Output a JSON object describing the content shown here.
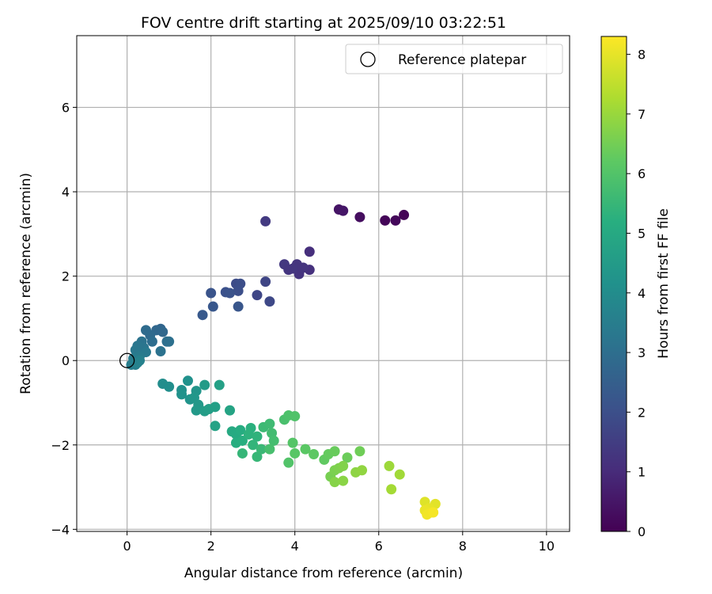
{
  "chart_data": {
    "type": "scatter",
    "title": "FOV centre drift starting at 2025/09/10 03:22:51",
    "xlabel": "Angular distance from reference (arcmin)",
    "ylabel": "Rotation from reference (arcmin)",
    "xlim": [
      -1.2,
      10.55
    ],
    "ylim": [
      -4.05,
      7.7
    ],
    "xticks": [
      0,
      2,
      4,
      6,
      8,
      10
    ],
    "yticks": [
      -4,
      -2,
      0,
      2,
      4,
      6
    ],
    "grid": true,
    "legend": {
      "position": "top-right",
      "entries": [
        "Reference platepar"
      ]
    },
    "reference_point": {
      "x": 0,
      "y": 0
    },
    "colorbar": {
      "label": "Hours from first FF file",
      "colormap": "viridis",
      "range": [
        0,
        8.3
      ],
      "ticks": [
        0,
        1,
        2,
        3,
        4,
        5,
        6,
        7,
        8
      ]
    },
    "series": [
      {
        "points": [
          {
            "x": 6.6,
            "y": 3.45,
            "c": 0.05
          },
          {
            "x": 6.15,
            "y": 3.32,
            "c": 0.1
          },
          {
            "x": 6.4,
            "y": 3.32,
            "c": 0.15
          },
          {
            "x": 5.55,
            "y": 3.4,
            "c": 0.3
          },
          {
            "x": 5.05,
            "y": 3.58,
            "c": 0.45
          },
          {
            "x": 5.15,
            "y": 3.55,
            "c": 0.5
          },
          {
            "x": 4.35,
            "y": 2.58,
            "c": 1.1
          },
          {
            "x": 4.35,
            "y": 2.15,
            "c": 1.15
          },
          {
            "x": 4.1,
            "y": 2.05,
            "c": 1.2
          },
          {
            "x": 4.05,
            "y": 2.28,
            "c": 1.25
          },
          {
            "x": 3.95,
            "y": 2.18,
            "c": 1.3
          },
          {
            "x": 3.75,
            "y": 2.28,
            "c": 1.35
          },
          {
            "x": 3.85,
            "y": 2.15,
            "c": 1.3
          },
          {
            "x": 4.2,
            "y": 2.2,
            "c": 1.25
          },
          {
            "x": 3.3,
            "y": 3.3,
            "c": 1.4
          },
          {
            "x": 3.3,
            "y": 1.87,
            "c": 1.7
          },
          {
            "x": 3.1,
            "y": 1.55,
            "c": 1.75
          },
          {
            "x": 3.4,
            "y": 1.4,
            "c": 1.8
          },
          {
            "x": 2.6,
            "y": 1.82,
            "c": 1.9
          },
          {
            "x": 2.7,
            "y": 1.82,
            "c": 1.95
          },
          {
            "x": 2.65,
            "y": 1.65,
            "c": 2.0
          },
          {
            "x": 2.35,
            "y": 1.62,
            "c": 2.05
          },
          {
            "x": 2.45,
            "y": 1.6,
            "c": 2.1
          },
          {
            "x": 2.0,
            "y": 1.6,
            "c": 2.15
          },
          {
            "x": 2.65,
            "y": 1.28,
            "c": 2.2
          },
          {
            "x": 2.05,
            "y": 1.28,
            "c": 2.25
          },
          {
            "x": 1.8,
            "y": 1.08,
            "c": 2.3
          },
          {
            "x": 0.8,
            "y": 0.75,
            "c": 2.7
          },
          {
            "x": 0.7,
            "y": 0.72,
            "c": 2.75
          },
          {
            "x": 0.85,
            "y": 0.68,
            "c": 2.8
          },
          {
            "x": 0.55,
            "y": 0.6,
            "c": 2.85
          },
          {
            "x": 0.45,
            "y": 0.72,
            "c": 2.9
          },
          {
            "x": 0.6,
            "y": 0.45,
            "c": 2.95
          },
          {
            "x": 0.95,
            "y": 0.45,
            "c": 3.0
          },
          {
            "x": 1.0,
            "y": 0.45,
            "c": 3.05
          },
          {
            "x": 0.8,
            "y": 0.22,
            "c": 3.1
          },
          {
            "x": 0.35,
            "y": 0.45,
            "c": 3.15
          },
          {
            "x": 0.4,
            "y": 0.3,
            "c": 3.2
          },
          {
            "x": 0.25,
            "y": 0.35,
            "c": 3.25
          },
          {
            "x": 0.2,
            "y": 0.25,
            "c": 3.3
          },
          {
            "x": 0.45,
            "y": 0.2,
            "c": 3.35
          },
          {
            "x": 0.3,
            "y": 0.1,
            "c": 3.4
          },
          {
            "x": 0.15,
            "y": 0.05,
            "c": 3.45
          },
          {
            "x": 0.1,
            "y": -0.1,
            "c": 3.5
          },
          {
            "x": 0.2,
            "y": -0.1,
            "c": 3.55
          },
          {
            "x": 0.3,
            "y": 0.0,
            "c": 3.6
          },
          {
            "x": 0.25,
            "y": -0.05,
            "c": 3.65
          },
          {
            "x": 0.85,
            "y": -0.55,
            "c": 4.0
          },
          {
            "x": 1.0,
            "y": -0.62,
            "c": 4.05
          },
          {
            "x": 1.3,
            "y": -0.7,
            "c": 4.1
          },
          {
            "x": 1.45,
            "y": -0.48,
            "c": 4.15
          },
          {
            "x": 1.3,
            "y": -0.8,
            "c": 4.2
          },
          {
            "x": 1.5,
            "y": -0.92,
            "c": 4.25
          },
          {
            "x": 1.65,
            "y": -0.72,
            "c": 4.3
          },
          {
            "x": 1.6,
            "y": -0.88,
            "c": 4.35
          },
          {
            "x": 1.7,
            "y": -1.05,
            "c": 4.4
          },
          {
            "x": 1.65,
            "y": -1.18,
            "c": 4.45
          },
          {
            "x": 1.85,
            "y": -0.58,
            "c": 4.5
          },
          {
            "x": 1.85,
            "y": -1.2,
            "c": 4.55
          },
          {
            "x": 1.95,
            "y": -1.15,
            "c": 4.6
          },
          {
            "x": 2.1,
            "y": -1.1,
            "c": 4.65
          },
          {
            "x": 2.2,
            "y": -0.58,
            "c": 4.7
          },
          {
            "x": 2.1,
            "y": -1.55,
            "c": 4.75
          },
          {
            "x": 2.45,
            "y": -1.18,
            "c": 4.8
          },
          {
            "x": 2.5,
            "y": -1.68,
            "c": 5.0
          },
          {
            "x": 2.6,
            "y": -1.75,
            "c": 5.05
          },
          {
            "x": 2.7,
            "y": -1.65,
            "c": 5.1
          },
          {
            "x": 2.6,
            "y": -1.95,
            "c": 5.15
          },
          {
            "x": 2.75,
            "y": -1.9,
            "c": 5.2
          },
          {
            "x": 2.95,
            "y": -1.6,
            "c": 5.25
          },
          {
            "x": 2.9,
            "y": -1.75,
            "c": 5.3
          },
          {
            "x": 3.1,
            "y": -1.8,
            "c": 5.35
          },
          {
            "x": 3.0,
            "y": -2.0,
            "c": 5.4
          },
          {
            "x": 2.75,
            "y": -2.2,
            "c": 5.45
          },
          {
            "x": 3.1,
            "y": -2.28,
            "c": 5.5
          },
          {
            "x": 3.2,
            "y": -2.1,
            "c": 5.55
          },
          {
            "x": 3.25,
            "y": -1.58,
            "c": 5.6
          },
          {
            "x": 3.4,
            "y": -1.5,
            "c": 5.65
          },
          {
            "x": 3.45,
            "y": -1.72,
            "c": 5.7
          },
          {
            "x": 3.5,
            "y": -1.9,
            "c": 5.75
          },
          {
            "x": 3.4,
            "y": -2.1,
            "c": 5.8
          },
          {
            "x": 3.75,
            "y": -1.4,
            "c": 5.85
          },
          {
            "x": 3.85,
            "y": -1.3,
            "c": 5.9
          },
          {
            "x": 4.0,
            "y": -1.32,
            "c": 5.95
          },
          {
            "x": 3.85,
            "y": -2.42,
            "c": 6.0
          },
          {
            "x": 3.95,
            "y": -1.95,
            "c": 6.05
          },
          {
            "x": 4.0,
            "y": -2.2,
            "c": 6.1
          },
          {
            "x": 4.25,
            "y": -2.1,
            "c": 6.15
          },
          {
            "x": 4.45,
            "y": -2.22,
            "c": 6.2
          },
          {
            "x": 4.7,
            "y": -2.35,
            "c": 6.25
          },
          {
            "x": 4.8,
            "y": -2.22,
            "c": 6.3
          },
          {
            "x": 4.95,
            "y": -2.15,
            "c": 6.35
          },
          {
            "x": 5.25,
            "y": -2.3,
            "c": 6.4
          },
          {
            "x": 5.55,
            "y": -2.15,
            "c": 6.45
          },
          {
            "x": 4.85,
            "y": -2.75,
            "c": 6.55
          },
          {
            "x": 4.95,
            "y": -2.6,
            "c": 6.6
          },
          {
            "x": 5.05,
            "y": -2.55,
            "c": 6.65
          },
          {
            "x": 5.15,
            "y": -2.5,
            "c": 6.7
          },
          {
            "x": 4.95,
            "y": -2.88,
            "c": 6.75
          },
          {
            "x": 5.15,
            "y": -2.85,
            "c": 6.8
          },
          {
            "x": 5.45,
            "y": -2.65,
            "c": 6.85
          },
          {
            "x": 5.6,
            "y": -2.6,
            "c": 6.9
          },
          {
            "x": 6.25,
            "y": -2.5,
            "c": 7.05
          },
          {
            "x": 6.5,
            "y": -2.7,
            "c": 7.1
          },
          {
            "x": 6.3,
            "y": -3.05,
            "c": 7.15
          },
          {
            "x": 7.1,
            "y": -3.35,
            "c": 7.9
          },
          {
            "x": 7.35,
            "y": -3.4,
            "c": 7.95
          },
          {
            "x": 7.2,
            "y": -3.5,
            "c": 8.0
          },
          {
            "x": 7.1,
            "y": -3.55,
            "c": 8.05
          },
          {
            "x": 7.25,
            "y": -3.6,
            "c": 8.1
          },
          {
            "x": 7.15,
            "y": -3.65,
            "c": 8.15
          },
          {
            "x": 7.3,
            "y": -3.6,
            "c": 8.2
          }
        ]
      }
    ]
  }
}
